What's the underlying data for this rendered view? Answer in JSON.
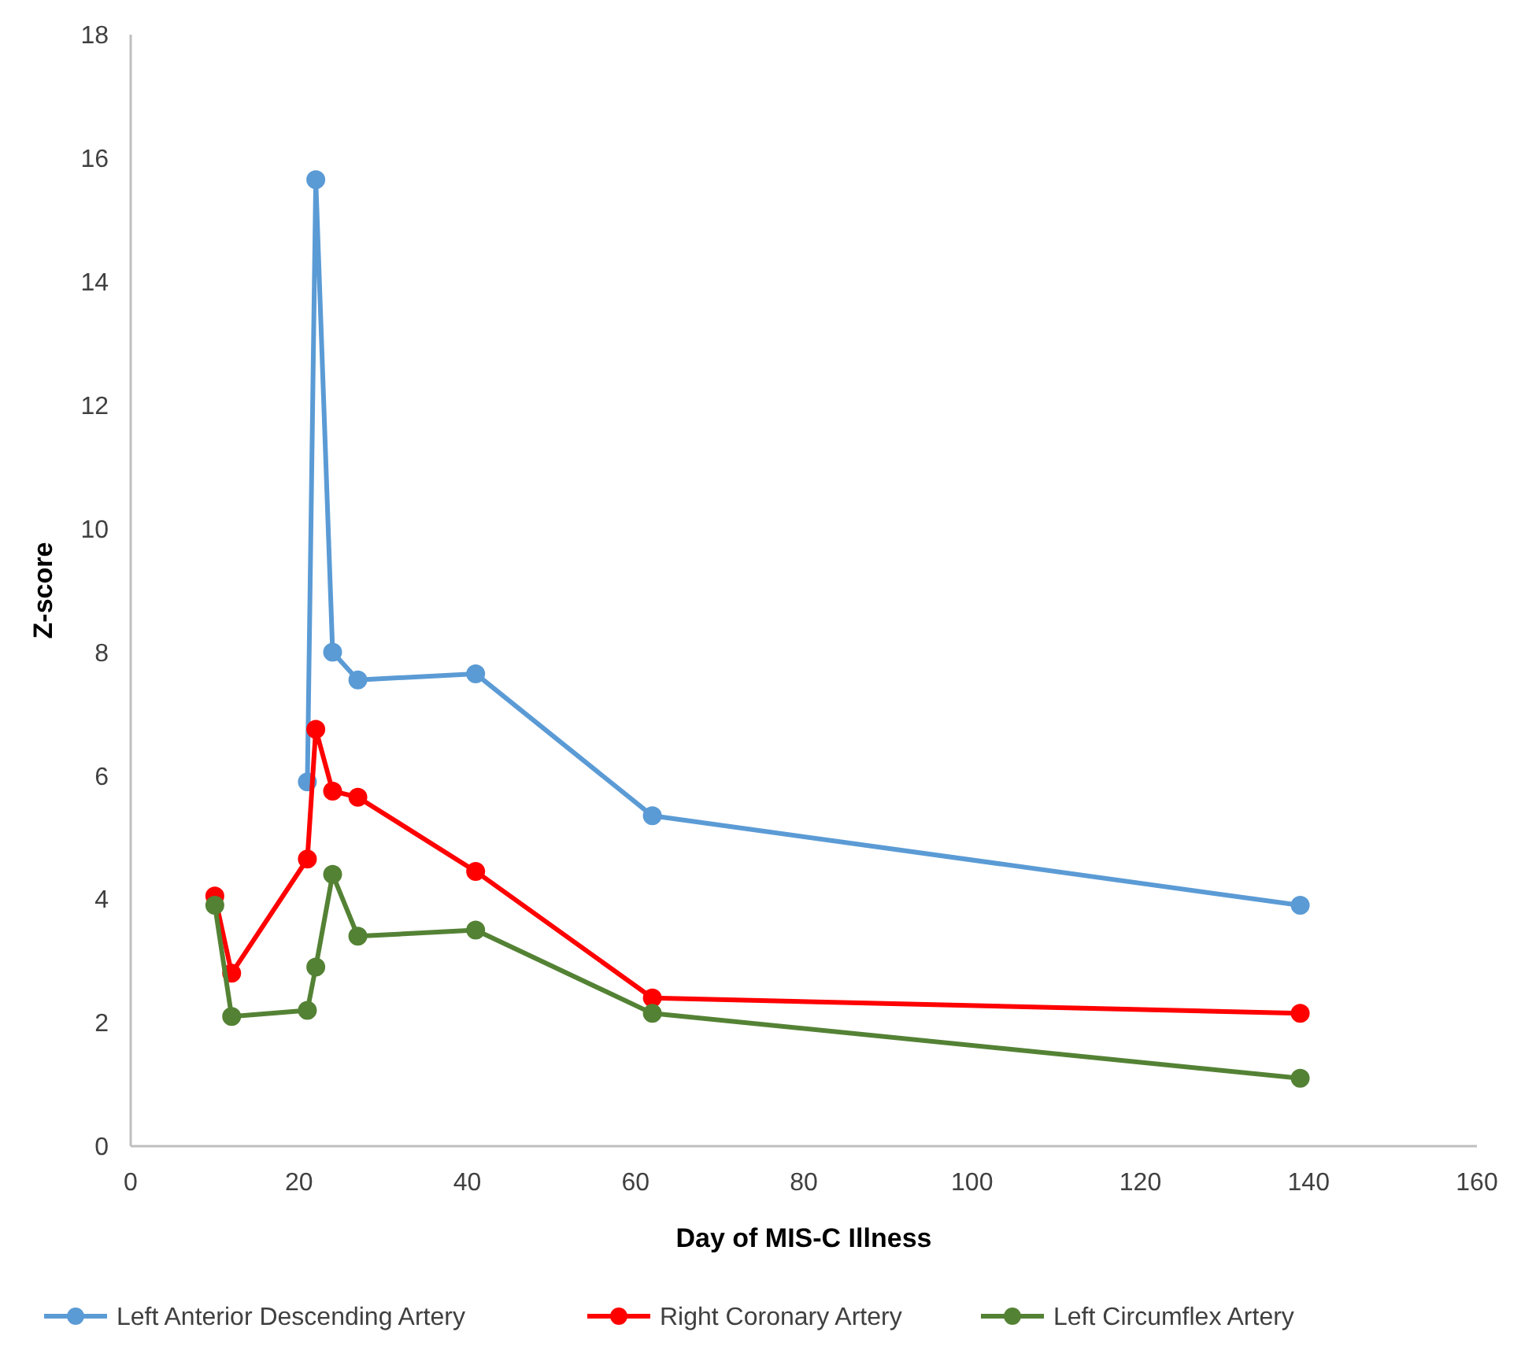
{
  "chart_data": {
    "type": "line",
    "xlabel": "Day of MIS-C Illness",
    "ylabel": "Z-score",
    "x": [
      10,
      12,
      21,
      22,
      24,
      27,
      41,
      62,
      139
    ],
    "xlim": [
      0,
      160
    ],
    "xticks": [
      0,
      20,
      40,
      60,
      80,
      100,
      120,
      140,
      160
    ],
    "ylim": [
      0,
      18
    ],
    "yticks": [
      0,
      2,
      4,
      6,
      8,
      10,
      12,
      14,
      16,
      18
    ],
    "grid": false,
    "legend": "bottom",
    "marker": "circle",
    "line_style": "solid",
    "series": [
      {
        "name": "Left Anterior Descending Artery",
        "color": "#5b9bd5",
        "values": [
          null,
          null,
          5.9,
          15.65,
          8.0,
          7.55,
          7.65,
          5.35,
          3.9
        ]
      },
      {
        "name": "Right Coronary Artery",
        "color": "#ff0000",
        "values": [
          4.05,
          2.8,
          4.65,
          6.75,
          5.75,
          5.65,
          4.45,
          2.4,
          2.15
        ]
      },
      {
        "name": "Left Circumflex Artery",
        "color": "#548235",
        "values": [
          3.9,
          2.1,
          2.2,
          2.9,
          4.4,
          3.4,
          3.5,
          2.15,
          1.1
        ]
      }
    ]
  }
}
